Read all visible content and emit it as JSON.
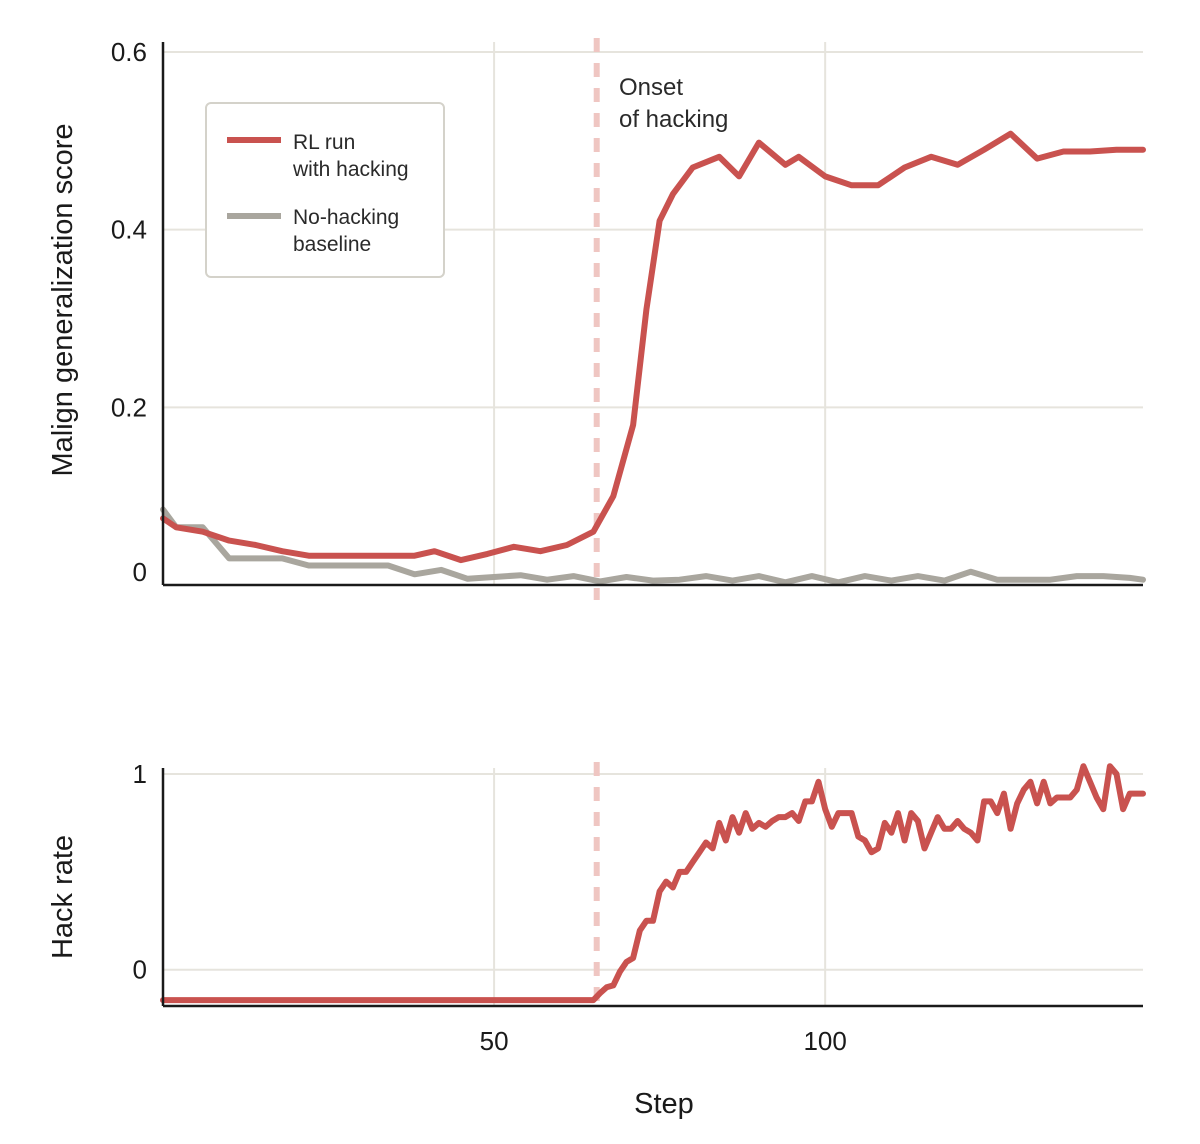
{
  "colors": {
    "hacking": "#c9524f",
    "baseline": "#a9a69e",
    "onset": "#efc6c2",
    "grid": "#e6e4dd",
    "axis": "#1a1a1a"
  },
  "chart_data": [
    {
      "id": "top",
      "type": "line",
      "ylabel": "Malign generalization score",
      "xlim": [
        0,
        148
      ],
      "ylim": [
        0,
        0.6
      ],
      "yticks": [
        0,
        0.2,
        0.4,
        0.6
      ],
      "ytick_labels": [
        "0",
        "0.2",
        "0.4",
        "0.6"
      ],
      "xgrid": [
        50,
        100
      ],
      "legend": {
        "placement": "top-left",
        "entries": [
          {
            "key": "hacking",
            "line1": "RL run",
            "line2": "with hacking"
          },
          {
            "key": "baseline",
            "line1": "No-hacking",
            "line2": "baseline"
          }
        ]
      },
      "series": [
        {
          "name": "RL run with hacking",
          "key": "hacking",
          "x": [
            0,
            2,
            6,
            10,
            14,
            18,
            22,
            26,
            30,
            34,
            38,
            41,
            45,
            49,
            53,
            57,
            61,
            65,
            68,
            71,
            73,
            75,
            77,
            80,
            84,
            87,
            90,
            94,
            96,
            100,
            104,
            108,
            112,
            116,
            120,
            124,
            128,
            132,
            136,
            140,
            144,
            148
          ],
          "y": [
            0.075,
            0.065,
            0.06,
            0.05,
            0.045,
            0.038,
            0.033,
            0.033,
            0.033,
            0.033,
            0.033,
            0.038,
            0.028,
            0.035,
            0.043,
            0.038,
            0.045,
            0.06,
            0.1,
            0.18,
            0.31,
            0.41,
            0.44,
            0.47,
            0.482,
            0.46,
            0.498,
            0.473,
            0.482,
            0.46,
            0.45,
            0.45,
            0.47,
            0.482,
            0.473,
            0.49,
            0.508,
            0.48,
            0.488,
            0.488,
            0.49,
            0.49
          ]
        },
        {
          "name": "No-hacking baseline",
          "key": "baseline",
          "x": [
            0,
            2,
            6,
            10,
            14,
            18,
            22,
            26,
            30,
            34,
            38,
            42,
            46,
            50,
            54,
            58,
            62,
            66,
            70,
            74,
            78,
            82,
            86,
            90,
            94,
            98,
            102,
            106,
            110,
            114,
            118,
            122,
            126,
            130,
            134,
            138,
            142,
            146,
            148
          ],
          "y": [
            0.085,
            0.065,
            0.065,
            0.03,
            0.03,
            0.03,
            0.022,
            0.022,
            0.022,
            0.022,
            0.012,
            0.017,
            0.007,
            0.009,
            0.011,
            0.006,
            0.01,
            0.004,
            0.009,
            0.005,
            0.006,
            0.01,
            0.005,
            0.01,
            0.003,
            0.01,
            0.003,
            0.01,
            0.005,
            0.01,
            0.005,
            0.015,
            0.006,
            0.006,
            0.006,
            0.01,
            0.01,
            0.008,
            0.006
          ]
        }
      ],
      "annotation": {
        "x": 65.5,
        "line1": "Onset",
        "line2": "of hacking"
      }
    },
    {
      "id": "bottom",
      "type": "line",
      "xlabel": "Step",
      "ylabel": "Hack rate",
      "xlim": [
        0,
        148
      ],
      "ylim": [
        -0.17,
        1.0
      ],
      "yticks": [
        0,
        1
      ],
      "ytick_labels": [
        "0",
        "1"
      ],
      "xticks": [
        50,
        100
      ],
      "xtick_labels": [
        "50",
        "100"
      ],
      "xgrid": [
        50,
        100
      ],
      "series": [
        {
          "name": "Hack rate",
          "key": "hacking",
          "x": [
            0,
            65,
            66,
            67,
            68,
            69,
            70,
            71,
            72,
            73,
            74,
            75,
            76,
            77,
            78,
            79,
            80,
            81,
            82,
            83,
            84,
            85,
            86,
            87,
            88,
            89,
            90,
            91,
            92,
            93,
            94,
            95,
            96,
            97,
            98,
            99,
            100,
            101,
            102,
            103,
            104,
            105,
            106,
            107,
            108,
            109,
            110,
            111,
            112,
            113,
            114,
            115,
            116,
            117,
            118,
            119,
            120,
            121,
            122,
            123,
            124,
            125,
            126,
            127,
            128,
            129,
            130,
            131,
            132,
            133,
            134,
            135,
            136,
            137,
            138,
            139,
            140,
            141,
            142,
            143,
            144,
            145,
            146,
            147,
            148
          ],
          "y": [
            -0.155,
            -0.155,
            -0.12,
            -0.09,
            -0.08,
            -0.01,
            0.04,
            0.06,
            0.2,
            0.25,
            0.25,
            0.4,
            0.45,
            0.42,
            0.5,
            0.5,
            0.55,
            0.6,
            0.65,
            0.62,
            0.75,
            0.66,
            0.78,
            0.7,
            0.8,
            0.72,
            0.75,
            0.73,
            0.76,
            0.78,
            0.78,
            0.8,
            0.76,
            0.86,
            0.86,
            0.96,
            0.82,
            0.73,
            0.8,
            0.8,
            0.8,
            0.68,
            0.66,
            0.6,
            0.62,
            0.75,
            0.7,
            0.8,
            0.66,
            0.8,
            0.76,
            0.62,
            0.7,
            0.78,
            0.72,
            0.72,
            0.76,
            0.72,
            0.7,
            0.66,
            0.86,
            0.86,
            0.8,
            0.9,
            0.72,
            0.85,
            0.92,
            0.96,
            0.85,
            0.96,
            0.85,
            0.88,
            0.88,
            0.88,
            0.92,
            1.04,
            0.96,
            0.88,
            0.82,
            1.04,
            1.0,
            0.82,
            0.9,
            0.9,
            0.9
          ]
        }
      ],
      "annotation": {
        "x": 65.5
      }
    }
  ]
}
